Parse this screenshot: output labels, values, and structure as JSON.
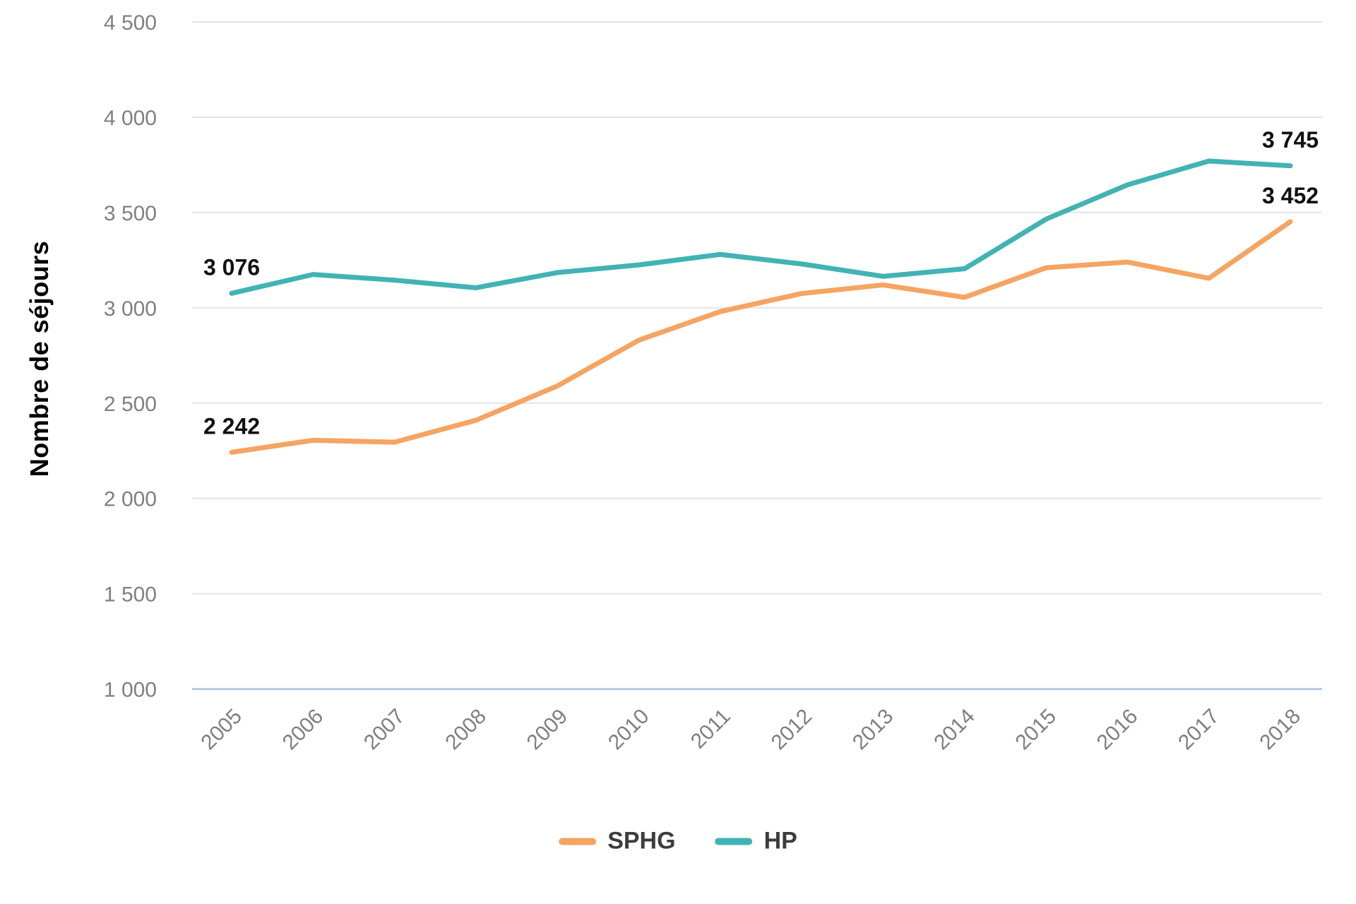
{
  "chart_data": {
    "type": "line",
    "title": "",
    "xlabel": "",
    "ylabel": "Nombre de séjours",
    "x": [
      "2005",
      "2006",
      "2007",
      "2008",
      "2009",
      "2010",
      "2011",
      "2012",
      "2013",
      "2014",
      "2015",
      "2016",
      "2017",
      "2018"
    ],
    "series": [
      {
        "name": "SPHG",
        "color": "#F5A462",
        "values": [
          2242,
          2305,
          2295,
          2410,
          2590,
          2830,
          2980,
          3075,
          3120,
          3055,
          3210,
          3240,
          3155,
          3452
        ]
      },
      {
        "name": "HP",
        "color": "#42B3B4",
        "values": [
          3076,
          3175,
          3145,
          3105,
          3185,
          3225,
          3280,
          3230,
          3165,
          3205,
          3465,
          3645,
          3770,
          3745
        ]
      }
    ],
    "ylim": [
      1000,
      4500
    ],
    "ytick_step": 500,
    "ytick_labels": [
      "1 000",
      "1 500",
      "2 000",
      "2 500",
      "3 000",
      "3 500",
      "4 000",
      "4 500"
    ],
    "grid": true,
    "legend_position": "bottom",
    "annotations": [
      {
        "text": "3 076",
        "series": "HP",
        "x": "2005",
        "value": 3076
      },
      {
        "text": "2 242",
        "series": "SPHG",
        "x": "2005",
        "value": 2242
      },
      {
        "text": "3 745",
        "series": "HP",
        "x": "2018",
        "value": 3745
      },
      {
        "text": "3 452",
        "series": "SPHG",
        "x": "2018",
        "value": 3452
      }
    ]
  },
  "legend": {
    "items": [
      {
        "label": "SPHG",
        "color": "#F5A462"
      },
      {
        "label": "HP",
        "color": "#42B3B4"
      }
    ]
  },
  "colors": {
    "gridline": "#e4e4e4",
    "baseline": "#b6c8e6",
    "tick_text": "#7f7f7f",
    "annotation_text": "#111111",
    "sphg_line": "#F5A462",
    "hp_line": "#42B3B4"
  }
}
